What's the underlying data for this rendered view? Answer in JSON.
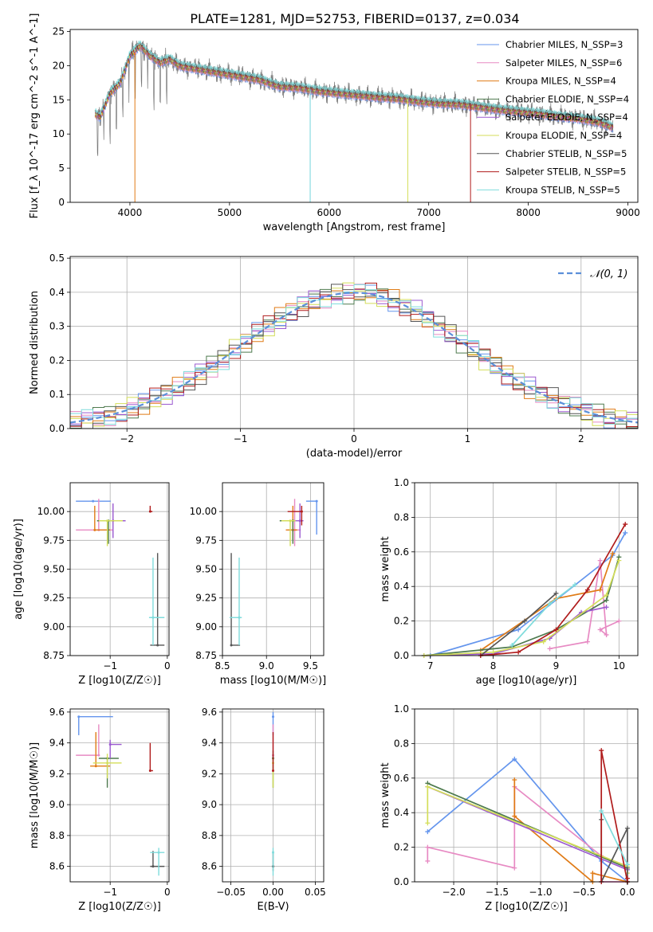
{
  "title": "PLATE=1281, MJD=52753, FIBERID=0137, z=0.034",
  "colors": {
    "chabrier_miles": "#6495ed",
    "salpeter_miles": "#e78ac3",
    "kroupa_miles": "#e07b16",
    "chabrier_elodie": "#4e7a4e",
    "salpeter_elodie": "#9b59d0",
    "kroupa_elodie": "#d4de5a",
    "chabrier_stelib": "#555555",
    "salpeter_stelib": "#b01c1c",
    "kroupa_stelib": "#7fdcdc",
    "normal_curve": "#5b8fd9",
    "grid": "#b0b0b0"
  },
  "chart_data": [
    {
      "id": "spectrum",
      "type": "line",
      "xlabel": "wavelength [Angstrom, rest frame]",
      "ylabel": "Flux [f_λ 10^-17 erg cm^-2 s^-1 A^-1]",
      "xlim": [
        3400,
        9100
      ],
      "ylim": [
        0,
        25.3
      ],
      "xticks": [
        4000,
        5000,
        6000,
        7000,
        8000,
        9000
      ],
      "yticks": [
        0,
        5,
        10,
        15,
        20,
        25
      ],
      "legend_position": "top-right",
      "series_labels": [
        "Chabrier MILES, N_SSP=3",
        "Salpeter MILES, N_SSP=6",
        "Kroupa MILES, N_SSP=4",
        "Chabrier ELODIE, N_SSP=4",
        "Salpeter ELODIE, N_SSP=4",
        "Kroupa ELODIE, N_SSP=4",
        "Chabrier STELIB, N_SSP=5",
        "Salpeter STELIB, N_SSP=5",
        "Kroupa STELIB, N_SSP=5"
      ],
      "data_x": [
        3650,
        3700,
        3800,
        3900,
        4000,
        4100,
        4200,
        4300,
        4400,
        4500,
        4700,
        4900,
        5100,
        5300,
        5500,
        5700,
        5900,
        6100,
        6300,
        6500,
        6700,
        6900,
        7100,
        7300,
        7500,
        7700,
        7900,
        8100,
        8300,
        8500,
        8700,
        8850
      ],
      "data_y": [
        13.0,
        12.5,
        16.0,
        17.5,
        21.5,
        23.0,
        21.5,
        20.5,
        21.0,
        20.0,
        19.5,
        19.0,
        18.5,
        18.0,
        17.0,
        16.8,
        16.3,
        16.0,
        15.7,
        15.4,
        15.2,
        14.8,
        14.5,
        14.4,
        14.0,
        13.6,
        13.3,
        13.0,
        12.6,
        12.3,
        11.8,
        11.0
      ]
    },
    {
      "id": "residuals",
      "type": "line",
      "xlabel": "(data-model)/error",
      "ylabel": "Normed distribution",
      "xlim": [
        -2.5,
        2.5
      ],
      "ylim": [
        0,
        0.505
      ],
      "xticks": [
        -2,
        -1,
        0,
        1,
        2
      ],
      "yticks": [
        0.0,
        0.1,
        0.2,
        0.3,
        0.4,
        0.5
      ],
      "legend_label": "𝒩(0, 1)",
      "legend_position": "top-right",
      "bin_width": 0.1
    },
    {
      "id": "age_vs_Z",
      "type": "scatter",
      "xlabel": "Z [log10(Z/Z☉)]",
      "ylabel": "age [log10(age/yr)]",
      "xlim": [
        -1.7,
        0.03
      ],
      "ylim": [
        8.75,
        10.25
      ],
      "xticks": [
        -1,
        0
      ],
      "yticks": [
        8.75,
        9.0,
        9.25,
        9.5,
        9.75,
        10.0
      ],
      "points": [
        {
          "s": "chabrier_miles",
          "x": -1.3,
          "y": 10.09,
          "xl": -1.6,
          "xh": -0.99,
          "yl": 10.09,
          "yh": 10.09
        },
        {
          "s": "salpeter_miles",
          "x": -1.2,
          "y": 9.84,
          "xl": -1.6,
          "xh": -0.95,
          "yl": 9.84,
          "yh": 10.11
        },
        {
          "s": "kroupa_miles",
          "x": -1.27,
          "y": 9.84,
          "xl": -1.27,
          "xh": -1.0,
          "yl": 9.84,
          "yh": 10.05
        },
        {
          "s": "chabrier_elodie",
          "x": -1.03,
          "y": 9.92,
          "xl": -1.23,
          "xh": -0.73,
          "yl": 9.72,
          "yh": 9.92
        },
        {
          "s": "salpeter_elodie",
          "x": -0.95,
          "y": 9.92,
          "xl": -1.15,
          "xh": -0.73,
          "yl": 9.77,
          "yh": 10.07
        },
        {
          "s": "kroupa_elodie",
          "x": -1.05,
          "y": 9.92,
          "xl": -1.2,
          "xh": -0.78,
          "yl": 9.7,
          "yh": 9.92
        },
        {
          "s": "chabrier_stelib",
          "x": -0.17,
          "y": 8.84,
          "xl": -0.3,
          "xh": -0.05,
          "yl": 8.84,
          "yh": 9.64
        },
        {
          "s": "salpeter_stelib",
          "x": -0.3,
          "y": 10.0,
          "xl": -0.3,
          "xh": -0.26,
          "yl": 10.0,
          "yh": 10.05
        },
        {
          "s": "kroupa_stelib",
          "x": -0.25,
          "y": 9.08,
          "xl": -0.32,
          "xh": -0.05,
          "yl": 8.84,
          "yh": 9.6
        }
      ]
    },
    {
      "id": "age_vs_mass",
      "type": "scatter",
      "xlabel": "mass [log10(M/M☉)]",
      "ylabel": "",
      "xlim": [
        8.5,
        9.65
      ],
      "ylim": [
        8.75,
        10.25
      ],
      "xticks": [
        8.5,
        9.0,
        9.5
      ],
      "yticks": [
        8.75,
        9.0,
        9.25,
        9.5,
        9.75,
        10.0
      ],
      "points": [
        {
          "s": "chabrier_miles",
          "x": 9.57,
          "y": 10.09,
          "xl": 9.45,
          "xh": 9.57,
          "yl": 9.8,
          "yh": 10.09
        },
        {
          "s": "salpeter_miles",
          "x": 9.32,
          "y": 9.84,
          "xl": 9.28,
          "xh": 9.39,
          "yl": 9.7,
          "yh": 10.11
        },
        {
          "s": "kroupa_miles",
          "x": 9.3,
          "y": 9.84,
          "xl": 9.22,
          "xh": 9.35,
          "yl": 9.75,
          "yh": 10.05
        },
        {
          "s": "chabrier_elodie",
          "x": 9.3,
          "y": 9.92,
          "xl": 9.15,
          "xh": 9.3,
          "yl": 9.72,
          "yh": 9.92
        },
        {
          "s": "salpeter_elodie",
          "x": 9.38,
          "y": 9.92,
          "xl": 9.3,
          "xh": 9.42,
          "yl": 9.77,
          "yh": 10.07
        },
        {
          "s": "kroupa_elodie",
          "x": 9.27,
          "y": 9.92,
          "xl": 9.17,
          "xh": 9.33,
          "yl": 9.7,
          "yh": 9.92
        },
        {
          "s": "chabrier_stelib",
          "x": 8.6,
          "y": 8.84,
          "xl": 8.6,
          "xh": 8.7,
          "yl": 8.84,
          "yh": 9.64
        },
        {
          "s": "salpeter_stelib",
          "x": 9.4,
          "y": 10.0,
          "xl": 9.24,
          "xh": 9.4,
          "yl": 9.88,
          "yh": 10.05
        },
        {
          "s": "kroupa_stelib",
          "x": 8.69,
          "y": 9.08,
          "xl": 8.58,
          "xh": 8.72,
          "yl": 8.84,
          "yh": 9.6
        }
      ]
    },
    {
      "id": "weight_vs_age",
      "type": "line",
      "xlabel": "age [log10(age/yr)]",
      "ylabel": "mass weight",
      "xlim": [
        6.75,
        10.3
      ],
      "ylim": [
        0,
        1.0
      ],
      "xticks": [
        7,
        8,
        9,
        10
      ],
      "yticks": [
        0.0,
        0.2,
        0.4,
        0.6,
        0.8,
        1.0
      ],
      "series": [
        {
          "s": "chabrier_miles",
          "x": [
            7.0,
            8.4,
            9.9,
            10.1
          ],
          "y": [
            0.0,
            0.15,
            0.58,
            0.71
          ]
        },
        {
          "s": "salpeter_miles",
          "x": [
            8.9,
            9.5,
            9.7,
            9.8,
            9.7,
            10.0
          ],
          "y": [
            0.04,
            0.08,
            0.55,
            0.12,
            0.15,
            0.2
          ]
        },
        {
          "s": "kroupa_miles",
          "x": [
            7.8,
            9.0,
            9.7,
            9.9
          ],
          "y": [
            0.03,
            0.33,
            0.38,
            0.59
          ]
        },
        {
          "s": "chabrier_elodie",
          "x": [
            6.9,
            8.3,
            9.0,
            9.8,
            10.0
          ],
          "y": [
            0.0,
            0.05,
            0.15,
            0.32,
            0.57
          ]
        },
        {
          "s": "salpeter_elodie",
          "x": [
            6.9,
            8.0,
            8.9,
            9.4,
            9.8
          ],
          "y": [
            0.0,
            0.01,
            0.1,
            0.25,
            0.28
          ]
        },
        {
          "s": "kroupa_elodie",
          "x": [
            6.9,
            8.0,
            8.8,
            9.8,
            10.0
          ],
          "y": [
            0.0,
            0.02,
            0.08,
            0.35,
            0.55
          ]
        },
        {
          "s": "chabrier_stelib",
          "x": [
            7.8,
            8.5,
            9.0
          ],
          "y": [
            0.0,
            0.2,
            0.36
          ]
        },
        {
          "s": "salpeter_stelib",
          "x": [
            7.8,
            8.4,
            9.0,
            9.5,
            10.1
          ],
          "y": [
            0.0,
            0.02,
            0.15,
            0.38,
            0.76
          ]
        },
        {
          "s": "kroupa_stelib",
          "x": [
            8.3,
            8.9,
            9.3
          ],
          "y": [
            0.06,
            0.3,
            0.41
          ]
        }
      ]
    },
    {
      "id": "mass_vs_Z",
      "type": "scatter",
      "xlabel": "Z [log10(Z/Z☉)]",
      "ylabel": "mass [log10(M/M☉)]",
      "xlim": [
        -1.7,
        0.03
      ],
      "ylim": [
        8.5,
        9.62
      ],
      "xticks": [
        -1,
        0
      ],
      "yticks": [
        8.6,
        8.8,
        9.0,
        9.2,
        9.4,
        9.6
      ],
      "points": [
        {
          "s": "chabrier_miles",
          "x": -1.55,
          "y": 9.57,
          "xl": -1.55,
          "xh": -0.95,
          "yl": 9.45,
          "yh": 9.57
        },
        {
          "s": "salpeter_miles",
          "x": -1.2,
          "y": 9.32,
          "xl": -1.6,
          "xh": -1.2,
          "yl": 9.32,
          "yh": 9.52
        },
        {
          "s": "kroupa_miles",
          "x": -1.25,
          "y": 9.25,
          "xl": -1.35,
          "xh": -1.0,
          "yl": 9.25,
          "yh": 9.47
        },
        {
          "s": "chabrier_elodie",
          "x": -1.05,
          "y": 9.3,
          "xl": -1.2,
          "xh": -0.85,
          "yl": 9.11,
          "yh": 9.3
        },
        {
          "s": "salpeter_elodie",
          "x": -1.0,
          "y": 9.39,
          "xl": -1.0,
          "xh": -0.8,
          "yl": 9.3,
          "yh": 9.42
        },
        {
          "s": "kroupa_elodie",
          "x": -1.05,
          "y": 9.27,
          "xl": -1.3,
          "xh": -0.8,
          "yl": 9.17,
          "yh": 9.33
        },
        {
          "s": "chabrier_stelib",
          "x": -0.25,
          "y": 8.6,
          "xl": -0.3,
          "xh": -0.05,
          "yl": 8.6,
          "yh": 8.7
        },
        {
          "s": "salpeter_stelib",
          "x": -0.3,
          "y": 9.22,
          "xl": -0.3,
          "xh": -0.25,
          "yl": 9.22,
          "yh": 9.4
        },
        {
          "s": "kroupa_stelib",
          "x": -0.15,
          "y": 8.69,
          "xl": -0.3,
          "xh": -0.05,
          "yl": 8.54,
          "yh": 8.72
        }
      ]
    },
    {
      "id": "mass_vs_ebv",
      "type": "scatter",
      "xlabel": "E(B-V)",
      "ylabel": "",
      "xlim": [
        -0.06,
        0.06
      ],
      "ylim": [
        8.5,
        9.62
      ],
      "xticks": [
        -0.05,
        0.0,
        0.05
      ],
      "yticks": [
        8.6,
        8.8,
        9.0,
        9.2,
        9.4,
        9.6
      ],
      "points": [
        {
          "s": "chabrier_miles",
          "x": 0.0,
          "y": 9.57,
          "yl": 9.45,
          "yh": 9.6
        },
        {
          "s": "salpeter_miles",
          "x": 0.0,
          "y": 9.32,
          "yl": 9.3,
          "yh": 9.52
        },
        {
          "s": "chabrier_elodie",
          "x": 0.0,
          "y": 9.3,
          "yl": 9.11,
          "yh": 9.35
        },
        {
          "s": "kroupa_elodie",
          "x": 0.0,
          "y": 9.27,
          "yl": 9.11,
          "yh": 9.3
        },
        {
          "s": "salpeter_stelib",
          "x": 0.0,
          "y": 9.22,
          "yl": 9.22,
          "yh": 9.47
        },
        {
          "s": "chabrier_stelib",
          "x": 0.0,
          "y": 8.6,
          "yl": 8.57,
          "yh": 8.7
        },
        {
          "s": "kroupa_stelib",
          "x": 0.0,
          "y": 8.69,
          "yl": 8.54,
          "yh": 8.72
        }
      ]
    },
    {
      "id": "weight_vs_Z",
      "type": "line",
      "xlabel": "Z [log10(Z/Z☉)]",
      "ylabel": "mass weight",
      "xlim": [
        -2.45,
        0.12
      ],
      "ylim": [
        0,
        1.0
      ],
      "xticks": [
        -2.0,
        -1.5,
        -1.0,
        -0.5,
        0.0
      ],
      "yticks": [
        0.0,
        0.2,
        0.4,
        0.6,
        0.8,
        1.0
      ],
      "series": [
        {
          "s": "chabrier_miles",
          "x": [
            -2.3,
            -1.3,
            -0.3,
            0.0
          ],
          "y": [
            0.29,
            0.71,
            0.12,
            0.0
          ]
        },
        {
          "s": "salpeter_miles",
          "x": [
            -2.3,
            -2.3,
            -1.3,
            -1.3,
            -0.3,
            -0.3,
            0.0
          ],
          "y": [
            0.12,
            0.2,
            0.08,
            0.55,
            0.15,
            0.0,
            0.0
          ]
        },
        {
          "s": "kroupa_miles",
          "x": [
            -1.3,
            -1.3,
            -0.4,
            -0.4,
            0.0
          ],
          "y": [
            0.59,
            0.38,
            0.0,
            0.05,
            0.0
          ]
        },
        {
          "s": "chabrier_elodie",
          "x": [
            -2.3,
            0.0
          ],
          "y": [
            0.57,
            0.08
          ]
        },
        {
          "s": "salpeter_elodie",
          "x": [
            -2.3,
            0.0
          ],
          "y": [
            0.55,
            0.07
          ]
        },
        {
          "s": "kroupa_elodie",
          "x": [
            -2.3,
            -2.3,
            0.0,
            0.0
          ],
          "y": [
            0.34,
            0.55,
            0.09,
            0.05
          ]
        },
        {
          "s": "chabrier_stelib",
          "x": [
            -0.3,
            -0.3,
            0.0,
            0.0
          ],
          "y": [
            0.36,
            0.0,
            0.31,
            0.0
          ]
        },
        {
          "s": "salpeter_stelib",
          "x": [
            -0.3,
            -0.3,
            0.0,
            0.0
          ],
          "y": [
            0.0,
            0.76,
            0.0,
            0.02
          ]
        },
        {
          "s": "kroupa_stelib",
          "x": [
            -0.3,
            0.0
          ],
          "y": [
            0.41,
            0.1
          ]
        }
      ]
    }
  ]
}
